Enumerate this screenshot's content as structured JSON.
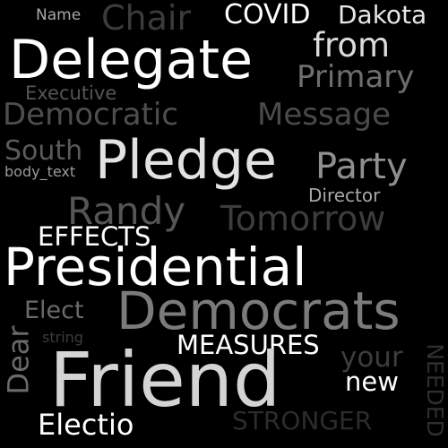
{
  "words": [
    {
      "text": "Name",
      "color": "#a8a8a8"
    },
    {
      "text": "Chair",
      "color": "#3b3b3b"
    },
    {
      "text": "COVID",
      "color": "#ffffff"
    },
    {
      "text": "Dakota",
      "color": "#e6e6e6"
    },
    {
      "text": "from",
      "color": "#dcdcdc"
    },
    {
      "text": "Delegate",
      "color": "#ffffff"
    },
    {
      "text": "Primary",
      "color": "#6e6e6e"
    },
    {
      "text": "Executive",
      "color": "#555555"
    },
    {
      "text": "Democratic",
      "color": "#4e4e4e"
    },
    {
      "text": "Message",
      "color": "#4a4a4a"
    },
    {
      "text": "South",
      "color": "#5a5a5a"
    },
    {
      "text": "Pledge",
      "color": "#e2e2e2"
    },
    {
      "text": "Party",
      "color": "#8f8f8f"
    },
    {
      "text": "body_text",
      "color": "#9b9b9b"
    },
    {
      "text": "Director",
      "color": "#a8a8a8"
    },
    {
      "text": "Randy",
      "color": "#555555"
    },
    {
      "text": "Tomorrow",
      "color": "#3c3c3c"
    },
    {
      "text": "EFFECTS",
      "color": "#ffffff"
    },
    {
      "text": "Presidential",
      "color": "#ffffff"
    },
    {
      "text": "Elect",
      "color": "#6a6a6a"
    },
    {
      "text": "Democrats",
      "color": "#7b7b7b"
    },
    {
      "text": "string",
      "color": "#3d3d3d"
    },
    {
      "text": "MEASURES",
      "color": "#ffffff"
    },
    {
      "text": "Dear",
      "color": "#6a6a6a"
    },
    {
      "text": "Friend",
      "color": "#d4d4d4"
    },
    {
      "text": "your",
      "color": "#3d3d3d"
    },
    {
      "text": "new",
      "color": "#ffffff"
    },
    {
      "text": "NEEDED",
      "color": "#2f2f2f"
    },
    {
      "text": "Electio",
      "color": "#ffffff"
    },
    {
      "text": "STRONGER",
      "color": "#2c2c2c"
    }
  ]
}
